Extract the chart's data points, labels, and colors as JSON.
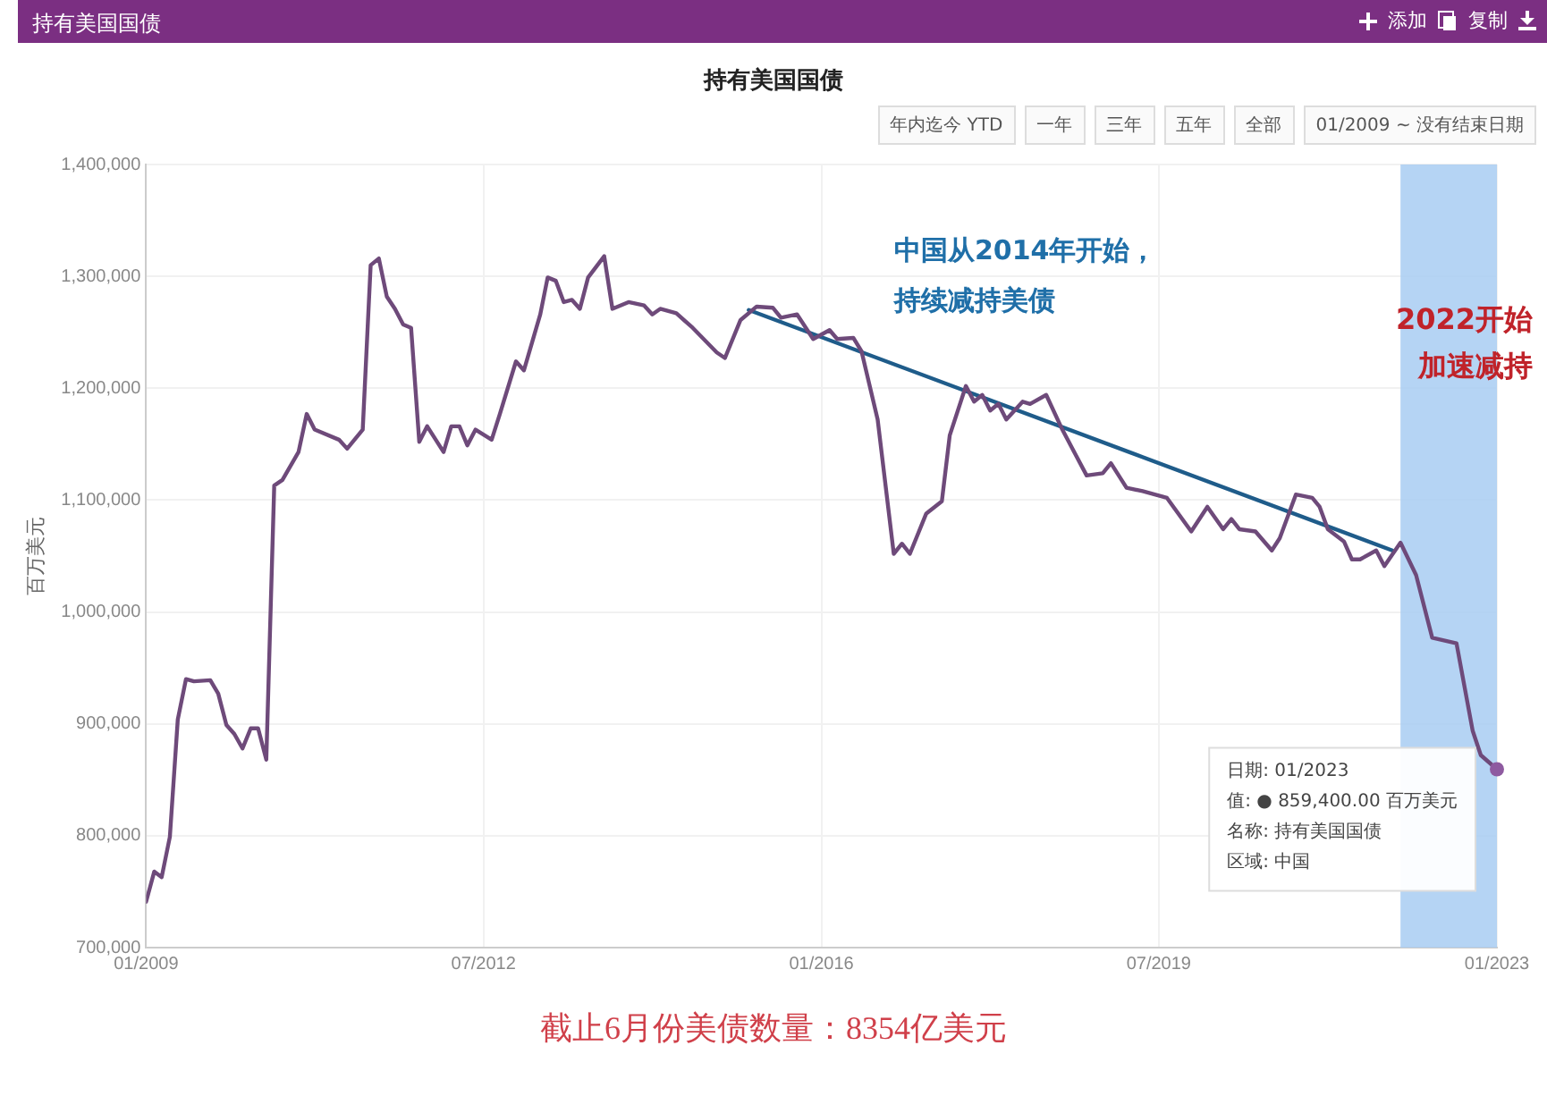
{
  "chart_data": {
    "type": "line",
    "title": "持有美国国债",
    "ylabel": "百万美元",
    "xlim": [
      "2009-01",
      "2023-01"
    ],
    "xticks": [
      {
        "value": "2009-01",
        "label": "01/2009"
      },
      {
        "value": "2012-07",
        "label": "07/2012"
      },
      {
        "value": "2016-01",
        "label": "01/2016"
      },
      {
        "value": "2019-07",
        "label": "07/2019"
      },
      {
        "value": "2023-01",
        "label": "01/2023"
      }
    ],
    "ylim": [
      700000,
      1400000
    ],
    "yticks": [
      {
        "value": 700000,
        "label": "700,000"
      },
      {
        "value": 800000,
        "label": "800,000"
      },
      {
        "value": 900000,
        "label": "900,000"
      },
      {
        "value": 1000000,
        "label": "1,000,000"
      },
      {
        "value": 1100000,
        "label": "1,100,000"
      },
      {
        "value": 1200000,
        "label": "1,200,000"
      },
      {
        "value": 1300000,
        "label": "1,300,000"
      },
      {
        "value": 1400000,
        "label": "1,400,000"
      }
    ],
    "grid": true,
    "legend": false,
    "marker": "none",
    "line_style": "solid",
    "series": [
      {
        "color": "#6e4a7a",
        "x": [
          "2009-01",
          "2009-02",
          "2009-03",
          "2009-04",
          "2009-05",
          "2009-06",
          "2009-07",
          "2009-09",
          "2009-10",
          "2009-11",
          "2009-12",
          "2010-01",
          "2010-02",
          "2010-03",
          "2010-04",
          "2010-05",
          "2010-06",
          "2010-08",
          "2010-09",
          "2010-10",
          "2011-01",
          "2011-02",
          "2011-04",
          "2011-05",
          "2011-06",
          "2011-07",
          "2011-08",
          "2011-09",
          "2011-10",
          "2011-11",
          "2011-12",
          "2012-02",
          "2012-03",
          "2012-04",
          "2012-05",
          "2012-06",
          "2012-08",
          "2012-09",
          "2012-11",
          "2012-12",
          "2013-02",
          "2013-03",
          "2013-04",
          "2013-05",
          "2013-06",
          "2013-07",
          "2013-08",
          "2013-10",
          "2013-11",
          "2014-01",
          "2014-03",
          "2014-04",
          "2014-05",
          "2014-07",
          "2014-09",
          "2014-12",
          "2015-01",
          "2015-03",
          "2015-05",
          "2015-07",
          "2015-08",
          "2015-10",
          "2015-12",
          "2016-02",
          "2016-03",
          "2016-05",
          "2016-06",
          "2016-08",
          "2016-10",
          "2016-11",
          "2016-12",
          "2017-02",
          "2017-04",
          "2017-05",
          "2017-07",
          "2017-08",
          "2017-09",
          "2017-10",
          "2017-11",
          "2017-12",
          "2018-02",
          "2018-03",
          "2018-05",
          "2018-07",
          "2018-10",
          "2018-12",
          "2019-01",
          "2019-03",
          "2019-05",
          "2019-08",
          "2019-11",
          "2020-01",
          "2020-03",
          "2020-04",
          "2020-05",
          "2020-07",
          "2020-09",
          "2020-10",
          "2020-12",
          "2021-02",
          "2021-03",
          "2021-04",
          "2021-06",
          "2021-07",
          "2021-08",
          "2021-10",
          "2021-11",
          "2022-01",
          "2022-03",
          "2022-05",
          "2022-08",
          "2022-10",
          "2022-11",
          "2023-01"
        ],
        "values": [
          741000,
          768000,
          763000,
          799000,
          904000,
          940000,
          938000,
          939000,
          927000,
          899000,
          891000,
          878000,
          896000,
          896000,
          868000,
          1113000,
          1118000,
          1143000,
          1177000,
          1163000,
          1154000,
          1146000,
          1163000,
          1310000,
          1316000,
          1282000,
          1271000,
          1257000,
          1254000,
          1152000,
          1166000,
          1143000,
          1166000,
          1166000,
          1149000,
          1163000,
          1154000,
          1177000,
          1224000,
          1216000,
          1266000,
          1299000,
          1296000,
          1277000,
          1279000,
          1271000,
          1299000,
          1318000,
          1271000,
          1277000,
          1274000,
          1266000,
          1271000,
          1267000,
          1254000,
          1232000,
          1227000,
          1261000,
          1273000,
          1272000,
          1263000,
          1266000,
          1244000,
          1252000,
          1244000,
          1245000,
          1233000,
          1172000,
          1052000,
          1061000,
          1052000,
          1088000,
          1099000,
          1158000,
          1202000,
          1188000,
          1194000,
          1180000,
          1186000,
          1172000,
          1188000,
          1186000,
          1194000,
          1163000,
          1122000,
          1124000,
          1133000,
          1111000,
          1108000,
          1102000,
          1072000,
          1094000,
          1074000,
          1083000,
          1074000,
          1072000,
          1055000,
          1066000,
          1105000,
          1102000,
          1094000,
          1074000,
          1063000,
          1047000,
          1047000,
          1055000,
          1041000,
          1062000,
          1033000,
          977000,
          972000,
          894000,
          872000,
          859400
        ]
      },
      {
        "color": "#1f5c8a",
        "x": [
          "2015-04",
          "2021-12"
        ],
        "values": [
          1270000,
          1055000
        ]
      }
    ],
    "bands": [
      {
        "axis": "x",
        "from": "2022-01",
        "to": "2023-01",
        "label": "2022开始加速减持",
        "color": "#a8cdf2"
      }
    ],
    "annotations": [
      "持有美国国债",
      "添加",
      "复制",
      "年内迄今 YTD",
      "一年",
      "三年",
      "五年",
      "全部",
      "01/2009 ~ 没有结束日期",
      "中国从2014年开始，",
      "持续减持美债",
      "日期: 01/2023",
      {
        "text": "值: ● 859,400.00 百万美元",
        "x": "2023-01",
        "y": 859400
      },
      "名称: 持有美国国债",
      "区域: 中国",
      "截止6月份美债数量：8354亿美元"
    ]
  }
}
